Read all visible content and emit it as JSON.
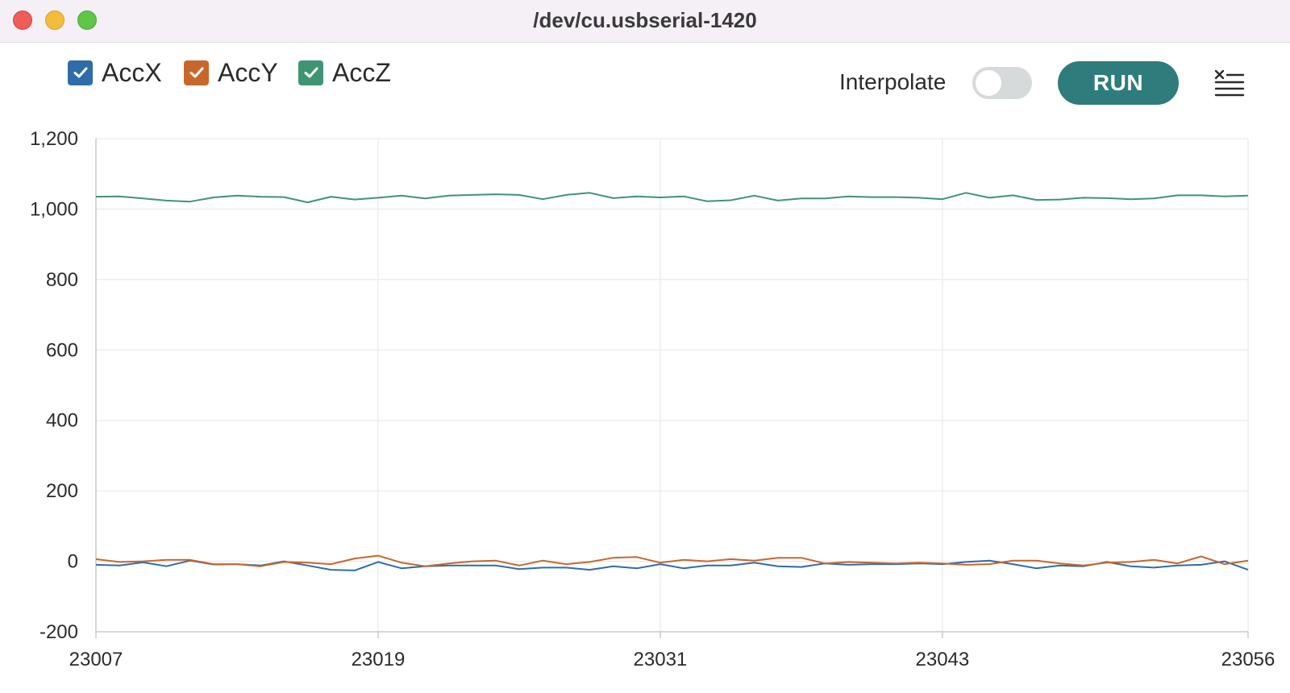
{
  "window": {
    "title": "/dev/cu.usbserial-1420"
  },
  "toolbar": {
    "legend": [
      {
        "label": "AccX",
        "checked": true,
        "color": "#2f6ca9"
      },
      {
        "label": "AccY",
        "checked": true,
        "color": "#c9662b"
      },
      {
        "label": "AccZ",
        "checked": true,
        "color": "#3f9474"
      }
    ],
    "interpolate_label": "Interpolate",
    "interpolate_on": false,
    "run_label": "RUN",
    "clear_icon": "clear-list-icon"
  },
  "chart_data": {
    "type": "line",
    "title": "",
    "xlabel": "",
    "ylabel": "",
    "xlim": [
      23007,
      23056
    ],
    "ylim": [
      -200,
      1200
    ],
    "x_ticks": [
      "23007",
      "23019",
      "23031",
      "23043",
      "23056"
    ],
    "y_ticks": [
      "1,200",
      "1,000",
      "800",
      "600",
      "400",
      "200",
      "0",
      "-200"
    ],
    "grid": true,
    "legend": "top-left",
    "series": [
      {
        "name": "AccX",
        "color": "#2f6ca9",
        "values": [
          -10,
          -12,
          -3,
          -14,
          2,
          -9,
          -8,
          -12,
          0,
          -12,
          -24,
          -26,
          -2,
          -20,
          -14,
          -12,
          -12,
          -12,
          -22,
          -18,
          -18,
          -24,
          -14,
          -20,
          -8,
          -20,
          -12,
          -12,
          -4,
          -14,
          -16,
          -6,
          -10,
          -8,
          -8,
          -6,
          -8,
          -2,
          2,
          -8,
          -20,
          -12,
          -14,
          -2,
          -14,
          -18,
          -12,
          -10,
          0,
          -24
        ]
      },
      {
        "name": "AccY",
        "color": "#c9662b",
        "values": [
          6,
          -2,
          0,
          4,
          4,
          -8,
          -8,
          -14,
          -2,
          -4,
          -8,
          8,
          16,
          -4,
          -14,
          -6,
          0,
          2,
          -12,
          2,
          -8,
          -2,
          10,
          12,
          -4,
          4,
          0,
          6,
          2,
          10,
          10,
          -6,
          -2,
          -4,
          -6,
          -4,
          -6,
          -10,
          -8,
          2,
          2,
          -6,
          -12,
          -4,
          -2,
          4,
          -6,
          14,
          -8,
          2
        ]
      },
      {
        "name": "AccZ",
        "color": "#3f9474",
        "values": [
          1035,
          1036,
          1030,
          1024,
          1021,
          1033,
          1038,
          1035,
          1034,
          1019,
          1035,
          1027,
          1032,
          1038,
          1030,
          1038,
          1040,
          1042,
          1040,
          1028,
          1040,
          1046,
          1031,
          1036,
          1033,
          1036,
          1022,
          1025,
          1038,
          1024,
          1030,
          1030,
          1036,
          1034,
          1034,
          1032,
          1028,
          1046,
          1032,
          1039,
          1026,
          1027,
          1032,
          1031,
          1028,
          1030,
          1039,
          1039,
          1036,
          1038
        ]
      }
    ]
  }
}
